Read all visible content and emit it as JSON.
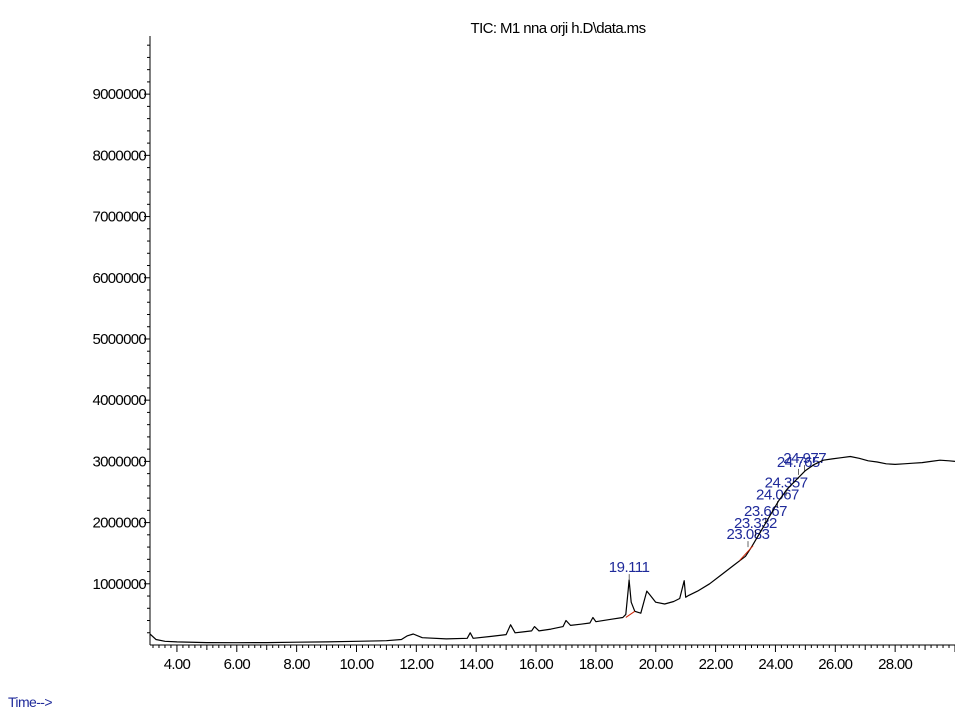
{
  "chart_data": {
    "type": "line",
    "title": "TIC: M1 nna orji h.D\\data.ms",
    "xlabel": "Time-->",
    "ylabel": "",
    "xlim": [
      3.1,
      30.0
    ],
    "ylim": [
      0,
      9950000
    ],
    "x_ticks": [
      4,
      6,
      8,
      10,
      12,
      14,
      16,
      18,
      20,
      22,
      24,
      26,
      28
    ],
    "x_tick_labels": [
      "4.00",
      "6.00",
      "8.00",
      "10.00",
      "12.00",
      "14.00",
      "16.00",
      "18.00",
      "20.00",
      "22.00",
      "24.00",
      "26.00",
      "28.00"
    ],
    "y_ticks": [
      1000000,
      2000000,
      3000000,
      4000000,
      5000000,
      6000000,
      7000000,
      8000000,
      9000000
    ],
    "y_tick_labels": [
      "1000000",
      "2000000",
      "3000000",
      "4000000",
      "5000000",
      "6000000",
      "7000000",
      "8000000",
      "9000000"
    ],
    "grid": false,
    "colors": {
      "trace": "#000000",
      "peak_label": "#1f2a9a",
      "integration": "#cc2200"
    },
    "series": [
      {
        "x": [
          3.1,
          3.3,
          3.6,
          4.0,
          5.0,
          6.0,
          7.0,
          8.0,
          9.0,
          10.0,
          11.0,
          11.5,
          11.7,
          11.9,
          12.2,
          13.0,
          13.7,
          13.8,
          13.9,
          14.5,
          15.0,
          15.15,
          15.3,
          15.5,
          15.85,
          15.95,
          16.1,
          16.5,
          16.9,
          17.0,
          17.15,
          17.5,
          17.8,
          17.9,
          18.0,
          18.5,
          18.9,
          19.0,
          19.08,
          19.11,
          19.18,
          19.3,
          19.5,
          19.6,
          19.7,
          19.8,
          20.0,
          20.3,
          20.6,
          20.8,
          20.95,
          21.0,
          21.1,
          21.4,
          21.8,
          22.2,
          22.6,
          23.0,
          23.2,
          23.5,
          23.8,
          24.1,
          24.4,
          24.7,
          25.0,
          25.3,
          25.6,
          25.9,
          26.2,
          26.5,
          26.8,
          27.1,
          27.4,
          27.7,
          28.0,
          28.3,
          28.6,
          28.9,
          29.2,
          29.5,
          29.8,
          30.0
        ],
        "y": [
          180000,
          90000,
          60000,
          50000,
          40000,
          38000,
          40000,
          45000,
          50000,
          60000,
          70000,
          90000,
          150000,
          180000,
          120000,
          100000,
          110000,
          200000,
          110000,
          140000,
          170000,
          330000,
          200000,
          210000,
          230000,
          300000,
          230000,
          260000,
          300000,
          400000,
          320000,
          340000,
          360000,
          450000,
          380000,
          420000,
          450000,
          500000,
          900000,
          1060000,
          700000,
          550000,
          520000,
          700000,
          880000,
          820000,
          700000,
          670000,
          710000,
          760000,
          1050000,
          780000,
          810000,
          880000,
          1000000,
          1150000,
          1300000,
          1450000,
          1600000,
          1850000,
          2100000,
          2350000,
          2550000,
          2700000,
          2850000,
          2950000,
          3020000,
          3040000,
          3060000,
          3080000,
          3050000,
          3010000,
          2990000,
          2960000,
          2950000,
          2960000,
          2970000,
          2980000,
          3000000,
          3020000,
          3010000,
          3000000
        ]
      }
    ],
    "peak_labels": [
      {
        "x": 19.111,
        "y": 1060000,
        "label": "19.111"
      },
      {
        "x": 23.083,
        "y": 1600000,
        "label": "23.083"
      },
      {
        "x": 23.332,
        "y": 1780000,
        "label": "23.332"
      },
      {
        "x": 23.667,
        "y": 1980000,
        "label": "23.667"
      },
      {
        "x": 24.067,
        "y": 2250000,
        "label": "24.067"
      },
      {
        "x": 24.357,
        "y": 2440000,
        "label": "24.357"
      },
      {
        "x": 24.765,
        "y": 2780000,
        "label": "24.765"
      },
      {
        "x": 24.977,
        "y": 2840000,
        "label": "24.977"
      }
    ]
  }
}
